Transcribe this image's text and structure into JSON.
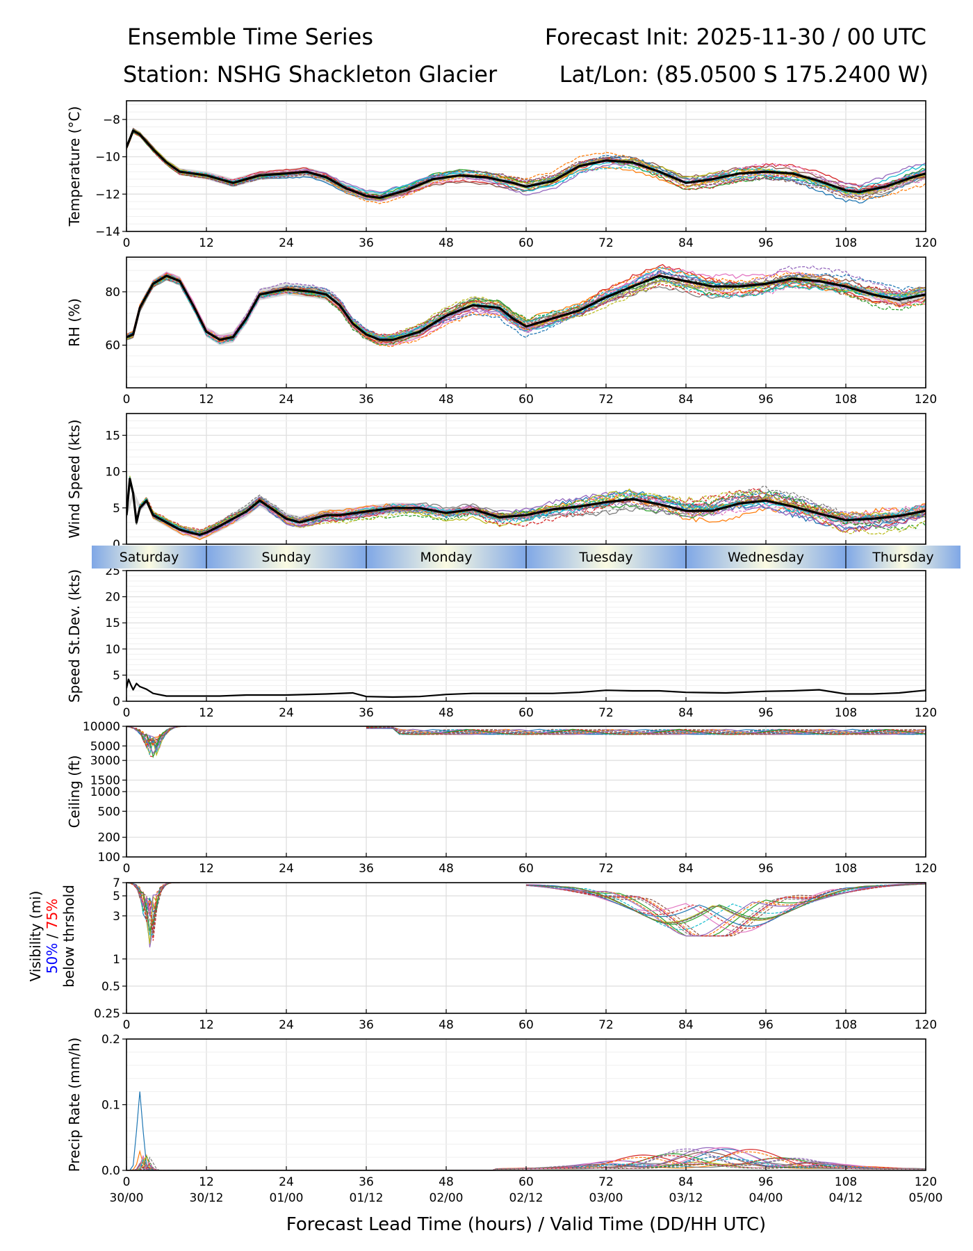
{
  "header": {
    "title_left": "Ensemble Time Series",
    "title_right": "Forecast Init: 2025-11-30 / 00 UTC",
    "station": "Station: NSHG Shackleton Glacier",
    "latlon": "Lat/Lon: (85.0500 S 175.2400 W)"
  },
  "days": [
    "Saturday",
    "Sunday",
    "Monday",
    "Tuesday",
    "Wednesday",
    "Thursday"
  ],
  "x_axis": {
    "ticks": [
      0,
      12,
      24,
      36,
      48,
      60,
      72,
      84,
      96,
      108,
      120
    ],
    "tick_labels": [
      "0",
      "12",
      "24",
      "36",
      "48",
      "60",
      "72",
      "84",
      "96",
      "108",
      "120"
    ],
    "valid_labels": [
      "30/00",
      "30/12",
      "01/00",
      "01/12",
      "02/00",
      "02/12",
      "03/00",
      "03/12",
      "04/00",
      "04/12",
      "05/00"
    ],
    "xlabel": "Forecast Lead Time (hours) / Valid Time (DD/HH UTC)"
  },
  "visibility_legend": {
    "line1": "Visibility (mi)",
    "pct50": "50%",
    "slash": " / ",
    "pct75": "75%",
    "line3": "below thrshold"
  },
  "colors": {
    "members": [
      "#1f77b4",
      "#ff7f0e",
      "#2ca02c",
      "#d62728",
      "#9467bd",
      "#8c564b",
      "#e377c2",
      "#7f7f7f",
      "#bcbd22",
      "#17becf"
    ],
    "mean": "#000000",
    "spread": "#c8c8c8",
    "pct50": "#0000ff",
    "pct75": "#ff0000"
  },
  "chart_data": [
    {
      "id": "temp",
      "type": "line",
      "ylabel": "Temperature (°C)",
      "yscale": "linear",
      "ylim": [
        -14,
        -7
      ],
      "yticks": [
        -14,
        -12,
        -10,
        -8
      ],
      "ytick_labels": [
        "−14",
        "−12",
        "−10",
        "−8"
      ],
      "ens_amp": 0.55,
      "noise": 0.12,
      "mean": {
        "x": [
          0,
          1,
          2,
          4,
          6,
          8,
          10,
          12,
          14,
          16,
          18,
          20,
          24,
          27,
          30,
          33,
          36,
          38,
          42,
          46,
          50,
          54,
          58,
          60,
          64,
          68,
          72,
          76,
          80,
          84,
          88,
          92,
          96,
          100,
          104,
          108,
          110,
          114,
          118,
          120
        ],
        "y": [
          -9.5,
          -8.6,
          -8.8,
          -9.6,
          -10.3,
          -10.8,
          -10.9,
          -11.0,
          -11.2,
          -11.4,
          -11.2,
          -11.0,
          -10.9,
          -10.8,
          -11.1,
          -11.7,
          -12.1,
          -12.2,
          -11.8,
          -11.2,
          -11.0,
          -11.1,
          -11.4,
          -11.6,
          -11.3,
          -10.5,
          -10.2,
          -10.3,
          -10.8,
          -11.4,
          -11.2,
          -10.9,
          -10.8,
          -10.9,
          -11.3,
          -11.8,
          -11.9,
          -11.6,
          -11.1,
          -10.9
        ]
      }
    },
    {
      "id": "rh",
      "type": "line",
      "ylabel": "RH (%)",
      "yscale": "linear",
      "ylim": [
        44,
        93
      ],
      "yticks": [
        60,
        80
      ],
      "ytick_labels": [
        "60",
        "80"
      ],
      "ens_amp": 5,
      "noise": 1.2,
      "mean": {
        "x": [
          0,
          1,
          2,
          4,
          6,
          8,
          10,
          12,
          14,
          16,
          18,
          20,
          24,
          28,
          30,
          32,
          34,
          36,
          38,
          40,
          44,
          48,
          52,
          56,
          58,
          60,
          64,
          68,
          72,
          76,
          80,
          84,
          88,
          92,
          96,
          100,
          104,
          108,
          112,
          116,
          120
        ],
        "y": [
          63,
          64,
          74,
          83,
          86,
          84,
          75,
          65,
          62,
          63,
          70,
          79,
          81,
          80,
          79,
          75,
          68,
          64,
          62,
          62,
          65,
          71,
          75,
          74,
          70,
          67,
          70,
          73,
          78,
          82,
          86,
          84,
          82,
          82,
          83,
          85,
          84,
          82,
          79,
          77,
          79
        ]
      }
    },
    {
      "id": "wind",
      "type": "line",
      "ylabel": "Wind Speed (kts)",
      "yscale": "linear",
      "ylim": [
        0,
        18
      ],
      "yticks": [
        0,
        5,
        10,
        15
      ],
      "ytick_labels": [
        "0",
        "5",
        "10",
        "15"
      ],
      "ens_amp": 1.8,
      "noise": 0.6,
      "mean": {
        "x": [
          0,
          0.5,
          1,
          1.5,
          2,
          3,
          4,
          6,
          8,
          10,
          11,
          12,
          14,
          16,
          18,
          20,
          24,
          26,
          28,
          30,
          32,
          36,
          40,
          44,
          48,
          52,
          56,
          60,
          64,
          68,
          72,
          76,
          80,
          84,
          88,
          92,
          96,
          100,
          104,
          108,
          112,
          116,
          120
        ],
        "y": [
          4,
          9,
          7,
          3,
          5,
          6,
          4,
          3,
          2,
          1.5,
          1.3,
          1.6,
          2.5,
          3.5,
          4.5,
          6,
          3.5,
          3,
          3.5,
          4,
          4,
          4.5,
          5,
          5,
          4.3,
          4.8,
          3.7,
          4,
          4.8,
          5.2,
          5.8,
          6.2,
          5.5,
          4.6,
          4.6,
          5.6,
          6,
          5.2,
          4.2,
          3.3,
          3.5,
          3.9,
          4.6
        ]
      }
    },
    {
      "id": "sd",
      "type": "line",
      "ylabel": "Speed St.Dev. (kts)",
      "yscale": "linear",
      "ylim": [
        0,
        25
      ],
      "yticks": [
        0,
        5,
        10,
        15,
        20,
        25
      ],
      "ytick_labels": [
        "0",
        "5",
        "10",
        "15",
        "20",
        "25"
      ],
      "ens_amp": 0,
      "noise": 0,
      "mean": {
        "x": [
          0,
          0.3,
          0.7,
          1,
          1.5,
          2,
          3,
          4,
          6,
          8,
          12,
          14,
          18,
          24,
          30,
          34,
          36,
          40,
          44,
          48,
          52,
          56,
          60,
          64,
          68,
          72,
          76,
          80,
          84,
          90,
          96,
          100,
          104,
          108,
          112,
          116,
          120
        ],
        "y": [
          2.5,
          4.2,
          3.0,
          2.2,
          3.4,
          2.8,
          2.3,
          1.5,
          1.0,
          1.0,
          1.0,
          1.0,
          1.2,
          1.2,
          1.4,
          1.6,
          0.9,
          0.8,
          0.9,
          1.3,
          1.5,
          1.5,
          1.5,
          1.5,
          1.7,
          2.1,
          2.0,
          2.0,
          1.7,
          1.6,
          1.9,
          2.0,
          2.2,
          1.4,
          1.4,
          1.6,
          2.1
        ]
      }
    },
    {
      "id": "ceil",
      "type": "line",
      "ylabel": "Ceiling (ft)",
      "yscale": "log",
      "ylim": [
        100,
        10000
      ],
      "yticks": [
        100,
        200,
        500,
        1000,
        1500,
        3000,
        5000,
        10000
      ],
      "ytick_labels": [
        "100",
        "200",
        "500",
        "1000",
        "1500",
        "3000",
        "5000",
        "10000"
      ],
      "ens_amp": 0,
      "noise": 0
    },
    {
      "id": "vis",
      "type": "line",
      "ylabel": "",
      "yscale": "log",
      "ylim": [
        0.25,
        7
      ],
      "yticks": [
        0.25,
        0.5,
        1,
        3,
        5,
        7
      ],
      "ytick_labels": [
        "0.25",
        "0.5",
        "1",
        "3",
        "5",
        "7"
      ],
      "ens_amp": 0,
      "noise": 0
    },
    {
      "id": "precip",
      "type": "line",
      "ylabel": "Precip Rate (mm/h)",
      "yscale": "linear",
      "ylim": [
        0,
        0.2
      ],
      "yticks": [
        0,
        0.1,
        0.2
      ],
      "ytick_labels": [
        "0.0",
        "0.1",
        "0.2"
      ],
      "ens_amp": 0,
      "noise": 0
    }
  ]
}
